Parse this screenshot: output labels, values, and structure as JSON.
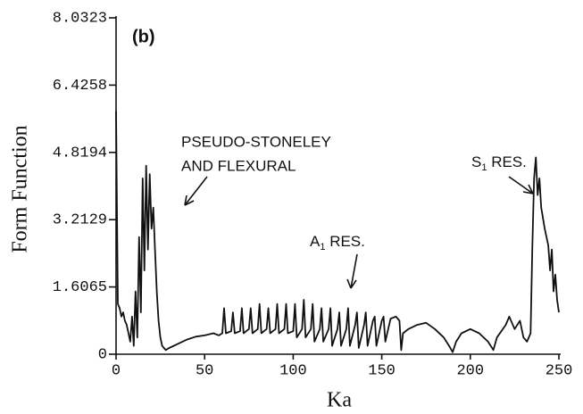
{
  "chart_data": {
    "type": "line",
    "title": "(b)",
    "x_label": "Ka",
    "y_label": "Form Function",
    "xlim": [
      0,
      250
    ],
    "ylim": [
      0,
      8.0323
    ],
    "xticks": [
      0,
      50,
      100,
      150,
      200,
      250
    ],
    "yticks": [
      0,
      1.6065,
      3.2129,
      4.8194,
      6.4258,
      8.0323
    ],
    "color": "#111111",
    "annotations": [
      {
        "lines": [
          "PSEUDO-STONELEY",
          "AND FLEXURAL"
        ]
      },
      {
        "parts": [
          "A",
          "1",
          " RES."
        ]
      },
      {
        "parts": [
          "S",
          "1",
          " RES."
        ]
      }
    ],
    "x": [
      0,
      1,
      2,
      3,
      4,
      5,
      6,
      7,
      8,
      9,
      10,
      11,
      12,
      13,
      14,
      15,
      16,
      17,
      18,
      19,
      20,
      21,
      22,
      23,
      24,
      25,
      26,
      28,
      30,
      35,
      40,
      45,
      50,
      55,
      58,
      60,
      61,
      62,
      65,
      66,
      67,
      70,
      71,
      72,
      75,
      76,
      77,
      80,
      81,
      82,
      85,
      86,
      87,
      90,
      91,
      92,
      95,
      96,
      97,
      100,
      101,
      102,
      105,
      106,
      107,
      110,
      111,
      112,
      115,
      116,
      117,
      120,
      121,
      122,
      125,
      126,
      127,
      130,
      131,
      132,
      135,
      136,
      137,
      140,
      141,
      142,
      145,
      146,
      147,
      150,
      151,
      152,
      155,
      158,
      160,
      161,
      162,
      165,
      170,
      175,
      180,
      185,
      188,
      190,
      192,
      195,
      200,
      205,
      210,
      213,
      215,
      220,
      222,
      225,
      228,
      230,
      232,
      234,
      235,
      236,
      237,
      238,
      239,
      240,
      242,
      244,
      245,
      246,
      247,
      248,
      249,
      250
    ],
    "values": [
      5.8,
      1.2,
      1.1,
      0.9,
      1.0,
      0.8,
      0.7,
      0.5,
      0.3,
      0.9,
      0.2,
      1.5,
      0.4,
      2.8,
      1.0,
      4.2,
      2.0,
      4.5,
      2.5,
      4.3,
      3.0,
      3.5,
      2.5,
      1.5,
      0.8,
      0.4,
      0.2,
      0.1,
      0.15,
      0.25,
      0.35,
      0.42,
      0.45,
      0.5,
      0.45,
      0.5,
      1.1,
      0.5,
      0.55,
      1.0,
      0.5,
      0.55,
      1.1,
      0.5,
      0.6,
      1.1,
      0.5,
      0.6,
      1.2,
      0.5,
      0.6,
      1.1,
      0.5,
      0.6,
      1.2,
      0.5,
      0.6,
      1.2,
      0.5,
      0.55,
      1.2,
      0.4,
      0.6,
      1.3,
      0.4,
      0.6,
      1.2,
      0.3,
      0.6,
      1.1,
      0.3,
      0.6,
      1.1,
      0.2,
      0.6,
      1.0,
      0.2,
      0.6,
      1.1,
      0.2,
      0.7,
      1.0,
      0.15,
      0.7,
      1.0,
      0.2,
      0.8,
      0.9,
      0.2,
      0.8,
      0.9,
      0.3,
      0.85,
      0.9,
      0.8,
      0.1,
      0.5,
      0.6,
      0.7,
      0.75,
      0.6,
      0.4,
      0.2,
      0.05,
      0.3,
      0.5,
      0.6,
      0.5,
      0.3,
      0.1,
      0.4,
      0.7,
      0.9,
      0.6,
      0.8,
      0.4,
      0.3,
      0.5,
      2.5,
      4.2,
      4.7,
      3.8,
      4.2,
      3.5,
      3.0,
      2.6,
      2.0,
      2.5,
      1.5,
      1.9,
      1.3,
      1.0
    ]
  }
}
